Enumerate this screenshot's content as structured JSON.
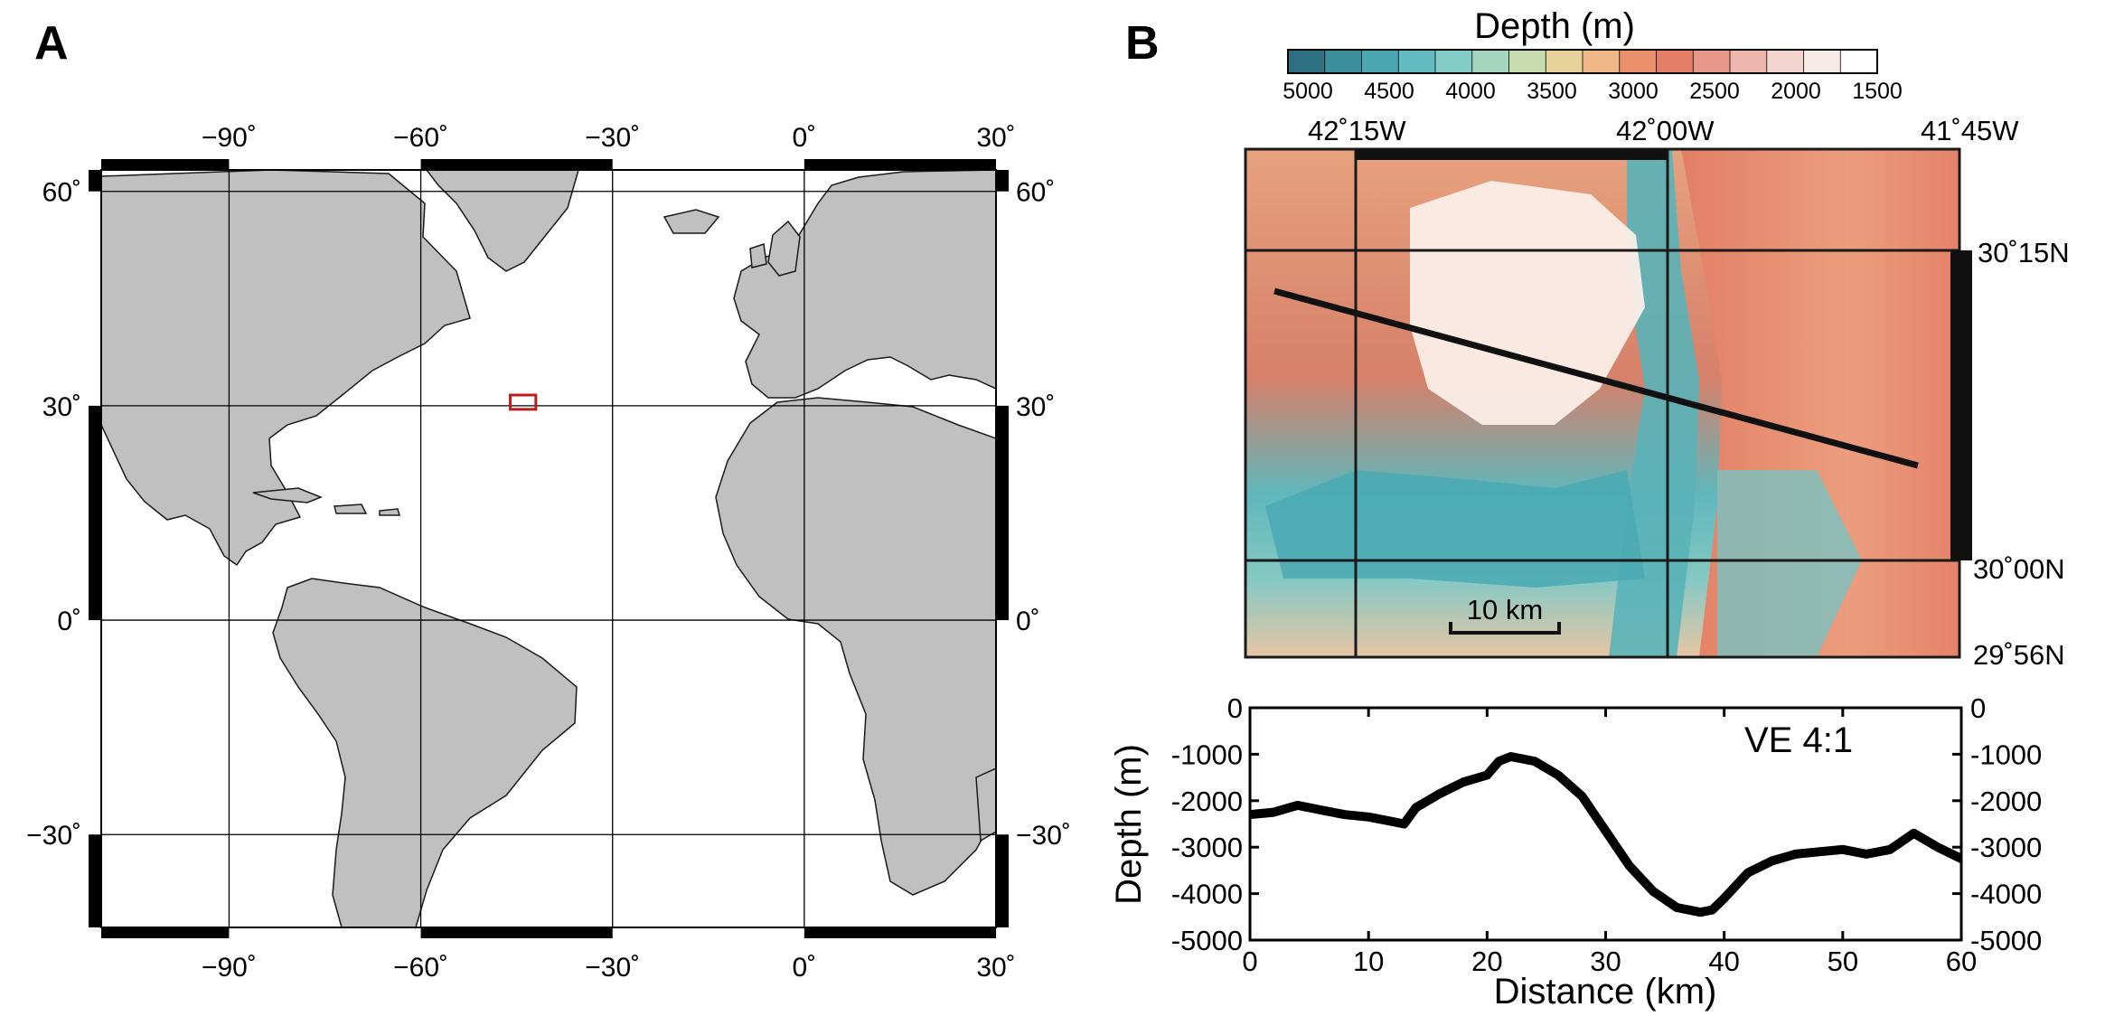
{
  "panel_a": {
    "letter": "A",
    "lon_ticks": [
      {
        "value": -90,
        "label": "−90˚"
      },
      {
        "value": -60,
        "label": "−60˚"
      },
      {
        "value": -30,
        "label": "−30˚"
      },
      {
        "value": 0,
        "label": "0˚"
      },
      {
        "value": 30,
        "label": "30˚"
      }
    ],
    "lat_ticks": [
      {
        "value": 60,
        "label": "60˚"
      },
      {
        "value": 30,
        "label": "30˚"
      },
      {
        "value": 0,
        "label": "0˚"
      },
      {
        "value": -30,
        "label": "−30˚"
      }
    ],
    "lon_range": [
      -110,
      30
    ],
    "lat_range": [
      -43,
      63
    ],
    "land_color": "#c0c0c0",
    "study_box": {
      "lon": [
        -46,
        -42
      ],
      "lat": [
        29.5,
        31.5
      ],
      "color": "#c01b1b"
    }
  },
  "panel_b": {
    "letter": "B",
    "colorbar": {
      "title": "Depth (m)",
      "tick_labels": [
        "5000",
        "4500",
        "4000",
        "3500",
        "3000",
        "2500",
        "2000",
        "1500"
      ],
      "colors": [
        "#2f6f82",
        "#3b8e9b",
        "#4ba7b2",
        "#62bcc2",
        "#84ccc8",
        "#a6d6c0",
        "#c9dcb0",
        "#e7d29c",
        "#f0b889",
        "#ea8f6b",
        "#e57e67",
        "#e7968a",
        "#eeb6ac",
        "#f3d3cd",
        "#f7ebe8",
        "#ffffff"
      ]
    },
    "bathymetry": {
      "lon_labels": [
        "42˚15W",
        "42˚00W",
        "41˚45W"
      ],
      "lat_labels": [
        "30˚15N",
        "30˚00N",
        "29˚56N"
      ],
      "scale_label": "10 km"
    },
    "profile": {
      "chart_data": {
        "type": "line",
        "xlabel": "Distance (km)",
        "ylabel": "Depth (m)",
        "annotation": "VE 4:1",
        "xlim": [
          0,
          60
        ],
        "ylim": [
          -5000,
          0
        ],
        "x_ticks": [
          "0",
          "10",
          "20",
          "30",
          "40",
          "50",
          "60"
        ],
        "y_ticks": [
          "0",
          "-1000",
          "-2000",
          "-3000",
          "-4000",
          "-5000"
        ],
        "x": [
          0,
          2,
          4,
          6,
          8,
          10,
          12,
          13,
          14,
          16,
          18,
          20,
          21,
          22,
          24,
          26,
          28,
          30,
          32,
          34,
          36,
          38,
          39,
          40,
          42,
          44,
          46,
          48,
          50,
          52,
          54,
          56,
          58,
          60
        ],
        "y": [
          -2300,
          -2250,
          -2100,
          -2200,
          -2300,
          -2350,
          -2450,
          -2500,
          -2150,
          -1850,
          -1600,
          -1450,
          -1150,
          -1050,
          -1150,
          -1450,
          -1900,
          -2650,
          -3400,
          -3950,
          -4300,
          -4400,
          -4350,
          -4100,
          -3550,
          -3300,
          -3150,
          -3100,
          -3050,
          -3150,
          -3050,
          -2700,
          -3000,
          -3250
        ]
      }
    }
  }
}
